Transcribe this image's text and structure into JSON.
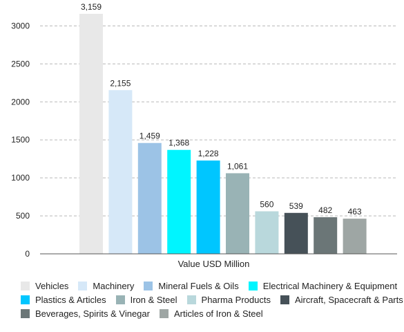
{
  "chart_data": {
    "type": "bar",
    "xlabel": "Value USD Million",
    "ylim": [
      0,
      3250
    ],
    "yticks": [
      0,
      500,
      1000,
      1500,
      2000,
      2500,
      3000
    ],
    "grid": true,
    "legend_position": "bottom",
    "series": [
      {
        "name": "Vehicles",
        "value": 3159,
        "label": "3,159",
        "color": "#e8e8e8"
      },
      {
        "name": "Machinery",
        "value": 2155,
        "label": "2,155",
        "color": "#d6e8f8"
      },
      {
        "name": "Mineral Fuels & Oils",
        "value": 1459,
        "label": "1,459",
        "color": "#9cc3e6"
      },
      {
        "name": "Electrical Machinery & Equipment",
        "value": 1368,
        "label": "1,368",
        "color": "#00f5ff"
      },
      {
        "name": "Plastics & Articles",
        "value": 1228,
        "label": "1,228",
        "color": "#00c6ff"
      },
      {
        "name": "Iron & Steel",
        "value": 1061,
        "label": "1,061",
        "color": "#99b3b5"
      },
      {
        "name": "Pharma Products",
        "value": 560,
        "label": "560",
        "color": "#b9d8dc"
      },
      {
        "name": "Aircraft, Spacecraft & Parts",
        "value": 539,
        "label": "539",
        "color": "#465158"
      },
      {
        "name": "Beverages, Spirits & Vinegar",
        "value": 482,
        "label": "482",
        "color": "#6b7677"
      },
      {
        "name": "Articles of Iron & Steel",
        "value": 463,
        "label": "463",
        "color": "#9ea6a4"
      }
    ]
  }
}
